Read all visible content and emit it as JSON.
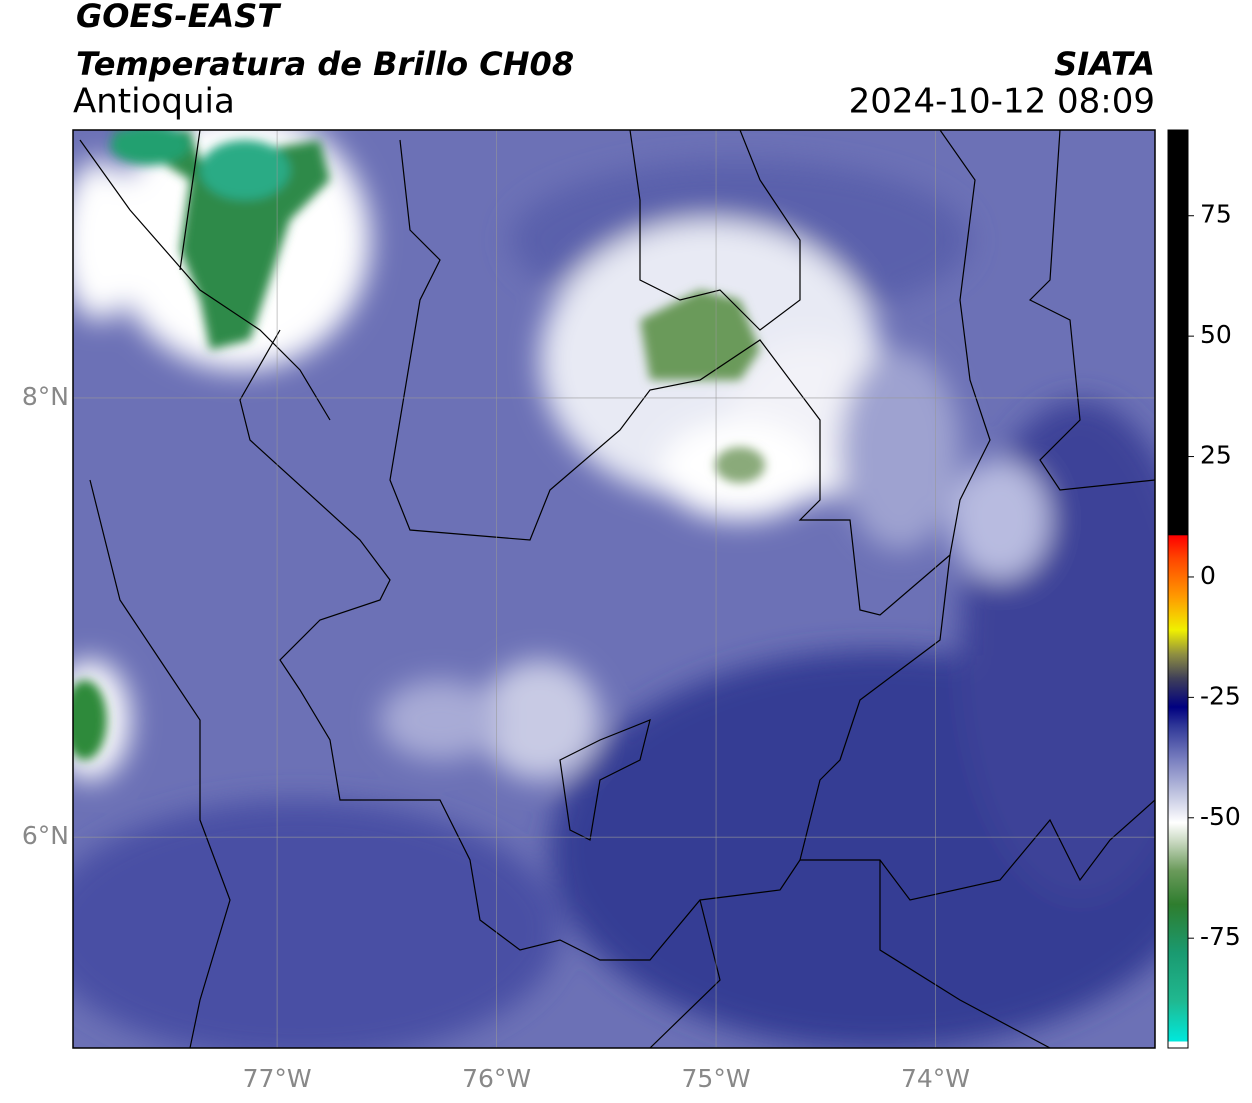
{
  "header": {
    "satellite": "GOES-EAST",
    "product": "Temperatura de Brillo CH08",
    "region": "Antioquia",
    "source": "SIATA",
    "datetime": "2024-10-12 08:09"
  },
  "map": {
    "xlim": [
      -77.93,
      -73.0
    ],
    "ylim": [
      5.04,
      9.22
    ],
    "xticks": [
      {
        "value": -77,
        "label": "77°W"
      },
      {
        "value": -76,
        "label": "76°W"
      },
      {
        "value": -75,
        "label": "75°W"
      },
      {
        "value": -74,
        "label": "74°W"
      }
    ],
    "yticks": [
      {
        "value": 6,
        "label": "6°N"
      },
      {
        "value": 8,
        "label": "8°N"
      }
    ],
    "grid": true
  },
  "colorbar": {
    "lim": [
      -97.8,
      92.8
    ],
    "ticks": [
      -75,
      -50,
      -25,
      0,
      25,
      50,
      75
    ],
    "stops": [
      {
        "value": -97.8,
        "color": "#ffffff"
      },
      {
        "value": -96.5,
        "color": "#ffffff"
      },
      {
        "value": -96.4,
        "color": "#00e8dc"
      },
      {
        "value": -88,
        "color": "#20b890"
      },
      {
        "value": -78,
        "color": "#1a9a70"
      },
      {
        "value": -68,
        "color": "#2e7d2e"
      },
      {
        "value": -61,
        "color": "#6a9a5a"
      },
      {
        "value": -55,
        "color": "#c8d8c0"
      },
      {
        "value": -51,
        "color": "#ffffff"
      },
      {
        "value": -45,
        "color": "#c0c4e0"
      },
      {
        "value": -38,
        "color": "#7a80c0"
      },
      {
        "value": -31,
        "color": "#303898"
      },
      {
        "value": -27,
        "color": "#000080"
      },
      {
        "value": -21,
        "color": "#404058"
      },
      {
        "value": -16,
        "color": "#909040"
      },
      {
        "value": -11,
        "color": "#f0f000"
      },
      {
        "value": -4,
        "color": "#ff9900"
      },
      {
        "value": 4,
        "color": "#ff4400"
      },
      {
        "value": 8.6,
        "color": "#ff0000"
      },
      {
        "value": 8.7,
        "color": "#000000"
      },
      {
        "value": 92.8,
        "color": "#000000"
      }
    ]
  }
}
